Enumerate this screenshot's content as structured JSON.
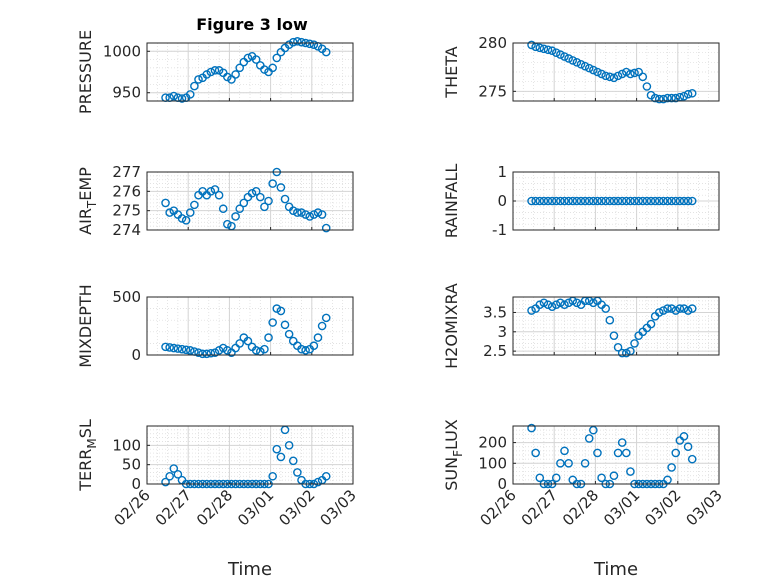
{
  "chart_data": {
    "type": "scatter",
    "title": "Figure 3 low",
    "marker_color": "#0072BD",
    "x_tick_labels": [
      "02/26",
      "02/27",
      "02/28",
      "03/01",
      "03/02",
      "03/03"
    ],
    "x_label": "Time",
    "x_range_days": [
      0,
      5
    ],
    "subplots": [
      {
        "id": "pressure",
        "ylabel": "PRESSURE",
        "ylim": [
          940,
          1010
        ],
        "yticks": [
          950,
          1000
        ],
        "x": [
          0.45,
          0.55,
          0.65,
          0.75,
          0.85,
          0.95,
          1.05,
          1.15,
          1.25,
          1.35,
          1.45,
          1.55,
          1.65,
          1.75,
          1.85,
          1.95,
          2.05,
          2.15,
          2.25,
          2.35,
          2.45,
          2.55,
          2.65,
          2.75,
          2.85,
          2.95,
          3.05,
          3.15,
          3.25,
          3.35,
          3.45,
          3.55,
          3.65,
          3.75,
          3.85,
          3.95,
          4.05,
          4.15,
          4.25,
          4.35
        ],
        "y": [
          944,
          944,
          946,
          944,
          943,
          944,
          948,
          958,
          966,
          968,
          972,
          975,
          977,
          977,
          974,
          969,
          966,
          972,
          980,
          987,
          992,
          994,
          990,
          983,
          978,
          975,
          980,
          992,
          999,
          1004,
          1008,
          1011,
          1012,
          1011,
          1010,
          1009,
          1008,
          1006,
          1003,
          999
        ]
      },
      {
        "id": "theta",
        "ylabel": "THETA",
        "ylim": [
          274,
          280
        ],
        "yticks": [
          275,
          280
        ],
        "x": [
          0.45,
          0.55,
          0.65,
          0.75,
          0.85,
          0.95,
          1.05,
          1.15,
          1.25,
          1.35,
          1.45,
          1.55,
          1.65,
          1.75,
          1.85,
          1.95,
          2.05,
          2.15,
          2.25,
          2.35,
          2.45,
          2.55,
          2.65,
          2.75,
          2.85,
          2.95,
          3.05,
          3.15,
          3.25,
          3.35,
          3.45,
          3.55,
          3.65,
          3.75,
          3.85,
          3.95,
          4.05,
          4.15,
          4.25,
          4.35
        ],
        "y": [
          279.8,
          279.6,
          279.5,
          279.4,
          279.3,
          279.2,
          279.0,
          278.8,
          278.6,
          278.4,
          278.2,
          278.0,
          277.8,
          277.6,
          277.4,
          277.2,
          277.0,
          276.8,
          276.6,
          276.5,
          276.4,
          276.6,
          276.8,
          277.0,
          276.8,
          276.9,
          277.0,
          276.5,
          275.5,
          274.6,
          274.3,
          274.2,
          274.2,
          274.3,
          274.3,
          274.3,
          274.4,
          274.5,
          274.7,
          274.8
        ]
      },
      {
        "id": "air_temp",
        "ylabel": "AIR_TEMP",
        "ylim": [
          274,
          277
        ],
        "yticks": [
          274,
          275,
          276,
          277
        ],
        "x": [
          0.45,
          0.55,
          0.65,
          0.75,
          0.85,
          0.95,
          1.05,
          1.15,
          1.25,
          1.35,
          1.45,
          1.55,
          1.65,
          1.75,
          1.85,
          1.95,
          2.05,
          2.15,
          2.25,
          2.35,
          2.45,
          2.55,
          2.65,
          2.75,
          2.85,
          2.95,
          3.05,
          3.15,
          3.25,
          3.35,
          3.45,
          3.55,
          3.65,
          3.75,
          3.85,
          3.95,
          4.05,
          4.15,
          4.25,
          4.35
        ],
        "y": [
          275.4,
          274.9,
          275.0,
          274.8,
          274.6,
          274.5,
          274.9,
          275.3,
          275.8,
          276.0,
          275.8,
          276.0,
          276.1,
          275.8,
          275.1,
          274.3,
          274.2,
          274.7,
          275.1,
          275.4,
          275.7,
          275.9,
          276.0,
          275.7,
          275.2,
          275.5,
          276.4,
          277.0,
          276.2,
          275.6,
          275.2,
          275.0,
          274.9,
          274.9,
          274.8,
          274.7,
          274.8,
          274.9,
          274.8,
          274.1
        ]
      },
      {
        "id": "rainfall",
        "ylabel": "RAINFALL",
        "ylim": [
          -1,
          1
        ],
        "yticks": [
          -1,
          0,
          1
        ],
        "x": [
          0.45,
          0.55,
          0.65,
          0.75,
          0.85,
          0.95,
          1.05,
          1.15,
          1.25,
          1.35,
          1.45,
          1.55,
          1.65,
          1.75,
          1.85,
          1.95,
          2.05,
          2.15,
          2.25,
          2.35,
          2.45,
          2.55,
          2.65,
          2.75,
          2.85,
          2.95,
          3.05,
          3.15,
          3.25,
          3.35,
          3.45,
          3.55,
          3.65,
          3.75,
          3.85,
          3.95,
          4.05,
          4.15,
          4.25,
          4.35
        ],
        "y": [
          0,
          0,
          0,
          0,
          0,
          0,
          0,
          0,
          0,
          0,
          0,
          0,
          0,
          0,
          0,
          0,
          0,
          0,
          0,
          0,
          0,
          0,
          0,
          0,
          0,
          0,
          0,
          0,
          0,
          0,
          0,
          0,
          0,
          0,
          0,
          0,
          0,
          0,
          0,
          0
        ]
      },
      {
        "id": "mixdepth",
        "ylabel": "MIXDEPTH",
        "ylim": [
          0,
          500
        ],
        "yticks": [
          0,
          500
        ],
        "x": [
          0.45,
          0.55,
          0.65,
          0.75,
          0.85,
          0.95,
          1.05,
          1.15,
          1.25,
          1.35,
          1.45,
          1.55,
          1.65,
          1.75,
          1.85,
          1.95,
          2.05,
          2.15,
          2.25,
          2.35,
          2.45,
          2.55,
          2.65,
          2.75,
          2.85,
          2.95,
          3.05,
          3.15,
          3.25,
          3.35,
          3.45,
          3.55,
          3.65,
          3.75,
          3.85,
          3.95,
          4.05,
          4.15,
          4.25,
          4.35
        ],
        "y": [
          70,
          65,
          60,
          55,
          50,
          45,
          40,
          30,
          20,
          10,
          10,
          15,
          20,
          40,
          60,
          40,
          20,
          60,
          100,
          150,
          120,
          70,
          40,
          30,
          50,
          150,
          280,
          400,
          380,
          260,
          180,
          120,
          80,
          50,
          40,
          50,
          80,
          150,
          250,
          320
        ]
      },
      {
        "id": "h2omixra",
        "ylabel": "H2OMIXRA",
        "ylim": [
          2.4,
          3.9
        ],
        "yticks": [
          2.5,
          3,
          3.5
        ],
        "x": [
          0.45,
          0.55,
          0.65,
          0.75,
          0.85,
          0.95,
          1.05,
          1.15,
          1.25,
          1.35,
          1.45,
          1.55,
          1.65,
          1.75,
          1.85,
          1.95,
          2.05,
          2.15,
          2.25,
          2.35,
          2.45,
          2.55,
          2.65,
          2.75,
          2.85,
          2.95,
          3.05,
          3.15,
          3.25,
          3.35,
          3.45,
          3.55,
          3.65,
          3.75,
          3.85,
          3.95,
          4.05,
          4.15,
          4.25,
          4.35
        ],
        "y": [
          3.55,
          3.6,
          3.7,
          3.75,
          3.7,
          3.65,
          3.7,
          3.75,
          3.7,
          3.75,
          3.8,
          3.75,
          3.7,
          3.8,
          3.8,
          3.75,
          3.8,
          3.7,
          3.6,
          3.3,
          2.9,
          2.6,
          2.45,
          2.45,
          2.5,
          2.7,
          2.9,
          3.0,
          3.1,
          3.2,
          3.4,
          3.5,
          3.55,
          3.6,
          3.6,
          3.55,
          3.6,
          3.6,
          3.55,
          3.6
        ]
      },
      {
        "id": "terr_msl",
        "ylabel": "TERR_MSL",
        "ylim": [
          0,
          150
        ],
        "yticks": [
          0,
          50,
          100
        ],
        "x": [
          0.45,
          0.55,
          0.65,
          0.75,
          0.85,
          0.95,
          1.05,
          1.15,
          1.25,
          1.35,
          1.45,
          1.55,
          1.65,
          1.75,
          1.85,
          1.95,
          2.05,
          2.15,
          2.25,
          2.35,
          2.45,
          2.55,
          2.65,
          2.75,
          2.85,
          2.95,
          3.05,
          3.15,
          3.25,
          3.35,
          3.45,
          3.55,
          3.65,
          3.75,
          3.85,
          3.95,
          4.05,
          4.15,
          4.25,
          4.35
        ],
        "y": [
          5,
          20,
          40,
          25,
          10,
          0,
          0,
          0,
          0,
          0,
          0,
          0,
          0,
          0,
          0,
          0,
          0,
          0,
          0,
          0,
          0,
          0,
          0,
          0,
          0,
          0,
          20,
          90,
          70,
          140,
          100,
          60,
          30,
          10,
          0,
          0,
          0,
          5,
          10,
          20
        ]
      },
      {
        "id": "sun_flux",
        "ylabel": "SUN_FLUX",
        "ylim": [
          0,
          280
        ],
        "yticks": [
          0,
          100,
          200
        ],
        "x": [
          0.45,
          0.55,
          0.65,
          0.75,
          0.85,
          0.95,
          1.05,
          1.15,
          1.25,
          1.35,
          1.45,
          1.55,
          1.65,
          1.75,
          1.85,
          1.95,
          2.05,
          2.15,
          2.25,
          2.35,
          2.45,
          2.55,
          2.65,
          2.75,
          2.85,
          2.95,
          3.05,
          3.15,
          3.25,
          3.35,
          3.45,
          3.55,
          3.65,
          3.75,
          3.85,
          3.95,
          4.05,
          4.15,
          4.25,
          4.35
        ],
        "y": [
          270,
          150,
          30,
          0,
          0,
          0,
          30,
          100,
          160,
          100,
          20,
          0,
          0,
          100,
          220,
          260,
          150,
          30,
          0,
          0,
          40,
          150,
          200,
          150,
          60,
          0,
          0,
          0,
          0,
          0,
          0,
          0,
          0,
          20,
          80,
          150,
          210,
          230,
          180,
          120
        ]
      }
    ]
  }
}
